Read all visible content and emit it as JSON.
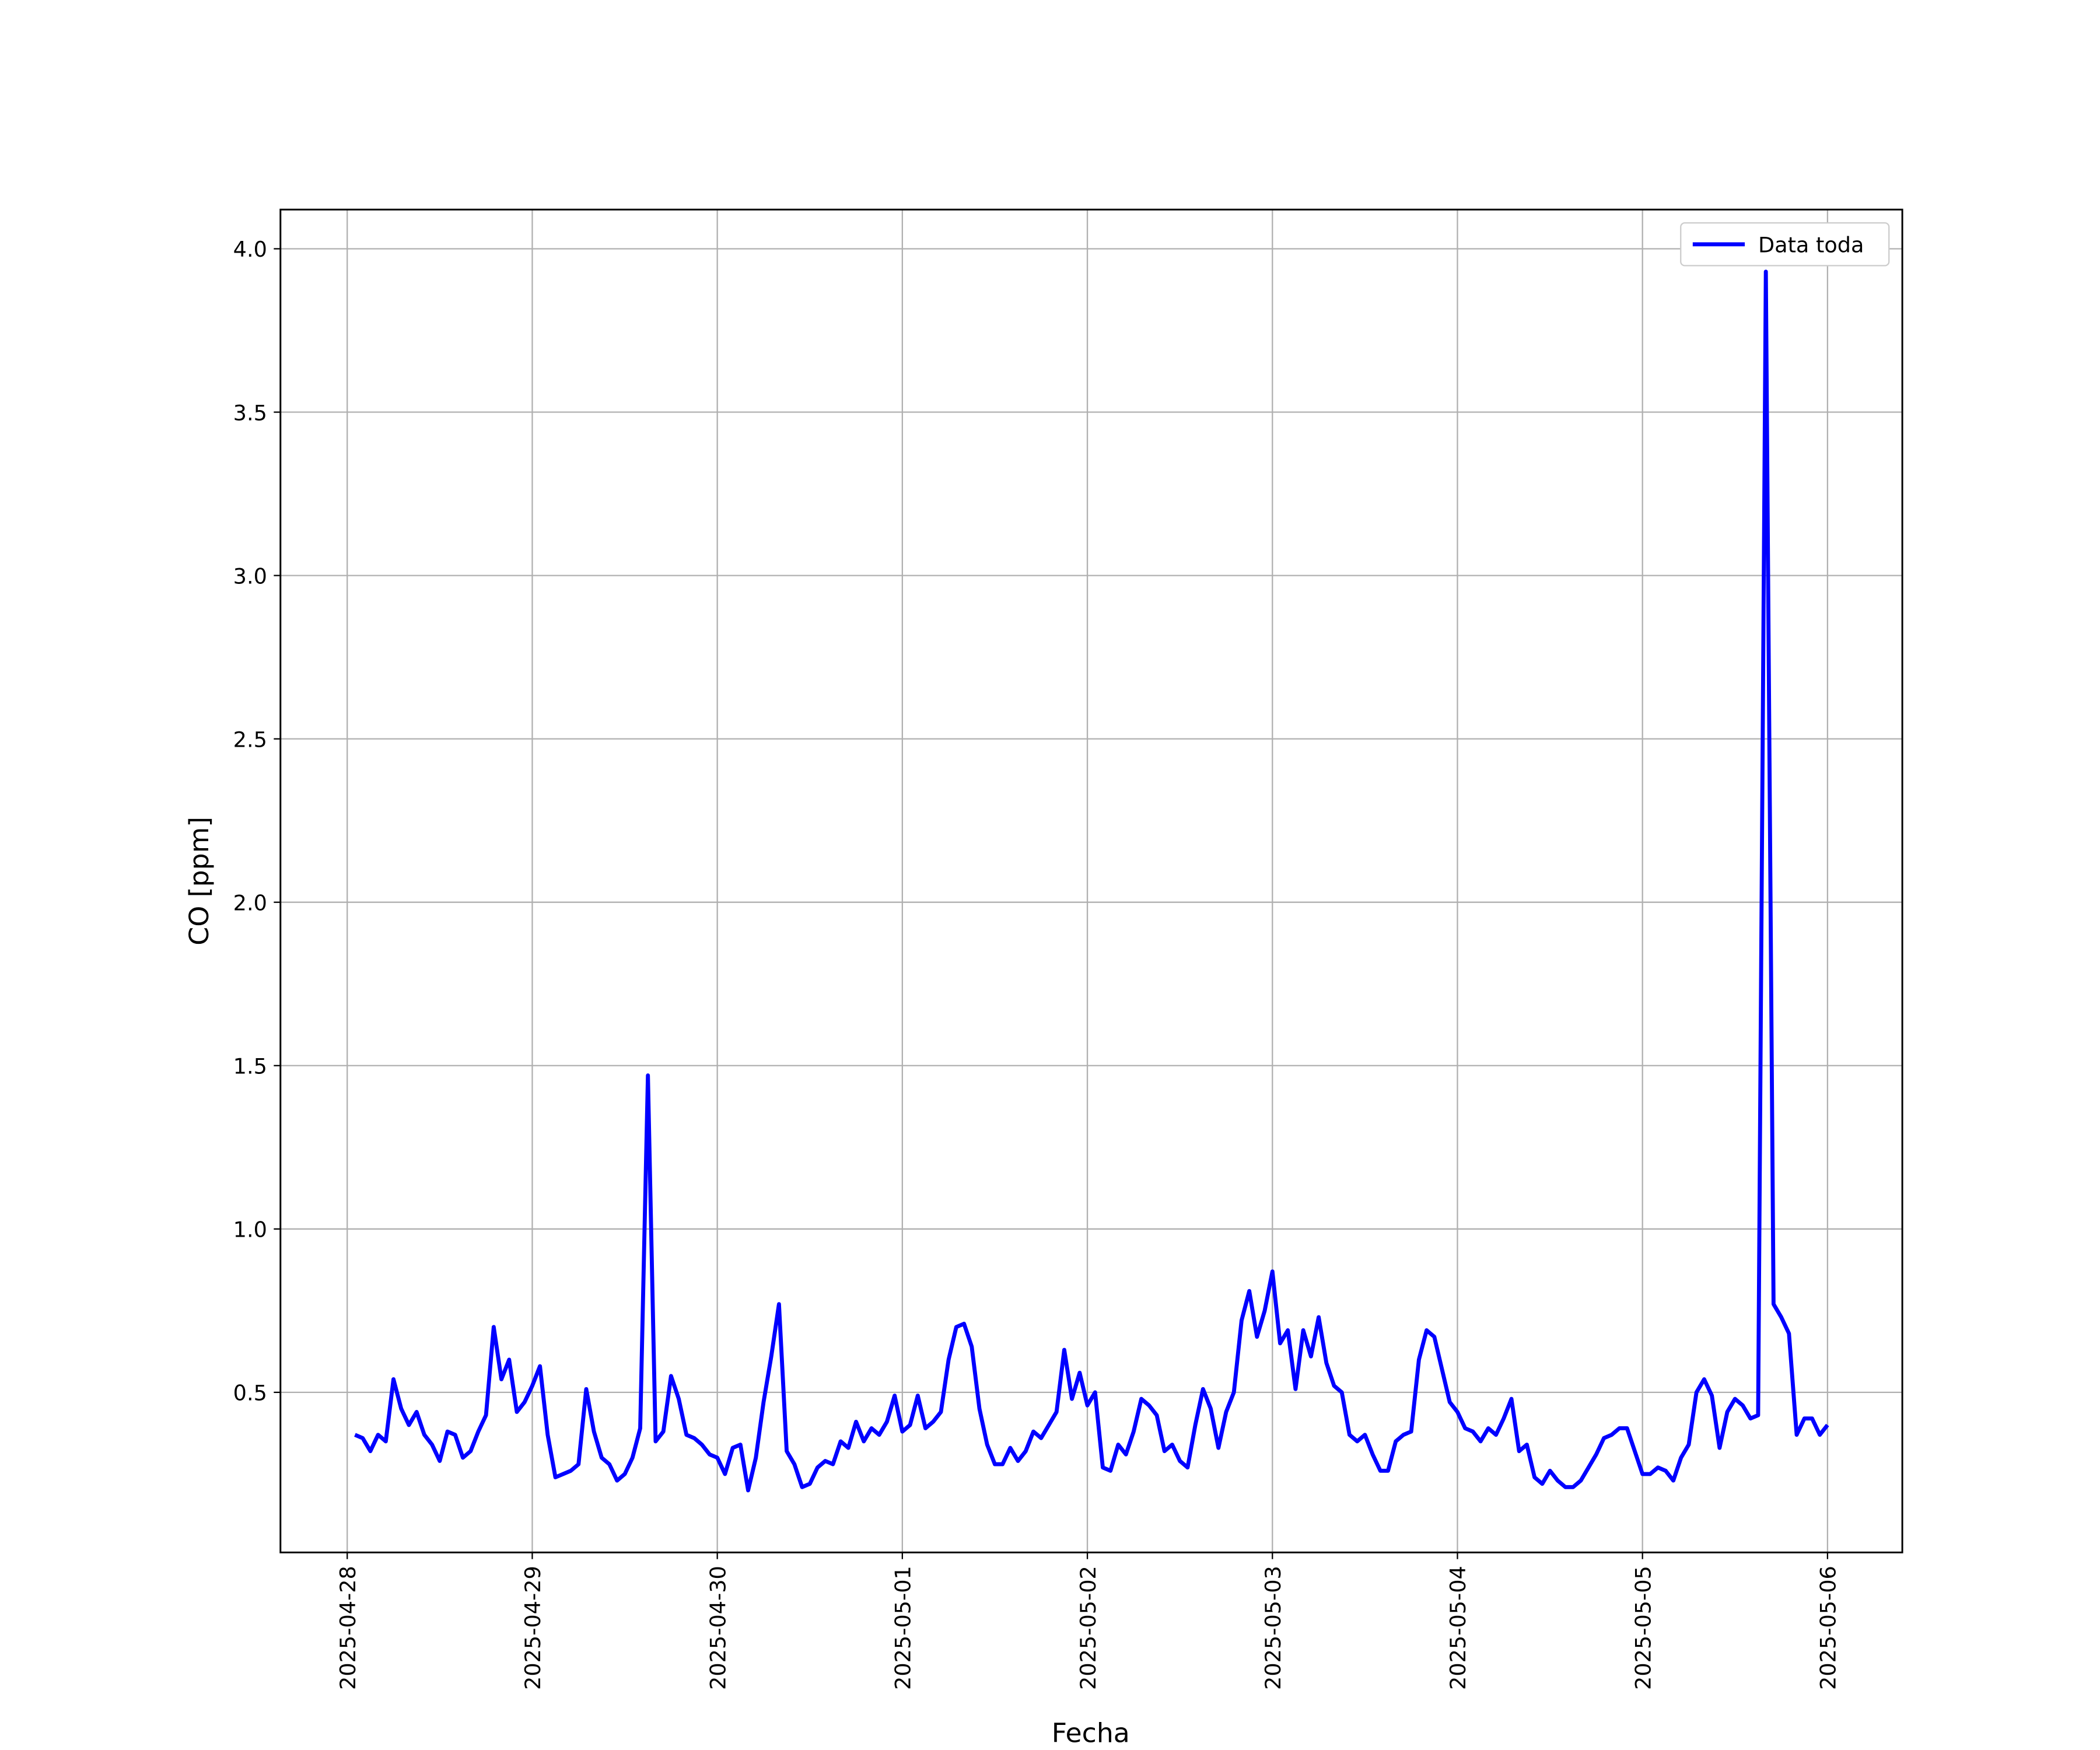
{
  "chart_data": {
    "type": "line",
    "xlabel": "Fecha",
    "ylabel": "CO [ppm]",
    "xlim": [
      -8.66,
      201.7
    ],
    "ylim": [
      0.01,
      4.12
    ],
    "xticks": [
      {
        "value": 0,
        "label": "2025-04-28"
      },
      {
        "value": 24,
        "label": "2025-04-29"
      },
      {
        "value": 48,
        "label": "2025-04-30"
      },
      {
        "value": 72,
        "label": "2025-05-01"
      },
      {
        "value": 96,
        "label": "2025-05-02"
      },
      {
        "value": 120,
        "label": "2025-05-03"
      },
      {
        "value": 144,
        "label": "2025-05-04"
      },
      {
        "value": 168,
        "label": "2025-05-05"
      },
      {
        "value": 192,
        "label": "2025-05-06"
      }
    ],
    "yticks": [
      0.5,
      {
        "value": 1,
        "label": "1.0"
      },
      1.5,
      {
        "value": 2,
        "label": "2.0"
      },
      2.5,
      {
        "value": 3,
        "label": "3.0"
      },
      3.5,
      {
        "value": 4,
        "label": "4.0"
      }
    ],
    "grid": true,
    "legend": "upper right",
    "x": [
      1,
      2,
      3,
      4,
      5,
      6,
      7,
      8,
      9,
      10,
      11,
      12,
      13,
      14,
      15,
      16,
      17,
      18,
      19,
      20,
      21,
      22,
      23,
      24,
      25,
      26,
      27,
      28,
      29,
      30,
      31,
      32,
      33,
      34,
      35,
      36,
      37,
      38,
      39,
      40,
      41,
      42,
      43,
      44,
      45,
      46,
      47,
      48,
      49,
      50,
      51,
      52,
      53,
      54,
      55,
      56,
      57,
      58,
      59,
      60,
      61,
      62,
      63,
      64,
      65,
      66,
      67,
      68,
      69,
      70,
      71,
      72,
      73,
      74,
      75,
      76,
      77,
      78,
      79,
      80,
      81,
      82,
      83,
      84,
      85,
      86,
      87,
      88,
      89,
      90,
      91,
      92,
      93,
      94,
      95,
      96,
      97,
      98,
      99,
      100,
      101,
      102,
      103,
      104,
      105,
      106,
      107,
      108,
      109,
      110,
      111,
      112,
      113,
      114,
      115,
      116,
      117,
      118,
      119,
      120,
      121,
      122,
      123,
      124,
      125,
      126,
      127,
      128,
      129,
      130,
      131,
      132,
      133,
      134,
      135,
      136,
      137,
      138,
      139,
      140,
      141,
      142,
      143,
      144,
      145,
      146,
      147,
      148,
      149,
      150,
      151,
      152,
      153,
      154,
      155,
      156,
      157,
      158,
      159,
      160,
      161,
      162,
      163,
      164,
      165,
      166,
      167,
      168,
      169,
      170,
      171,
      172,
      173,
      174,
      175,
      176,
      177,
      178,
      179,
      180,
      181,
      182,
      183,
      184,
      185,
      186,
      187,
      188,
      189,
      190,
      191,
      192
    ],
    "series": [
      {
        "name": "Data toda",
        "color": "#0000ff",
        "values": [
          0.37,
          0.36,
          0.32,
          0.37,
          0.35,
          0.54,
          0.45,
          0.4,
          0.44,
          0.37,
          0.34,
          0.29,
          0.38,
          0.37,
          0.3,
          0.32,
          0.38,
          0.43,
          0.7,
          0.54,
          0.6,
          0.44,
          0.47,
          0.52,
          0.58,
          0.37,
          0.24,
          0.25,
          0.26,
          0.28,
          0.51,
          0.38,
          0.3,
          0.28,
          0.23,
          0.25,
          0.3,
          0.39,
          1.47,
          0.35,
          0.38,
          0.55,
          0.48,
          0.37,
          0.36,
          0.34,
          0.31,
          0.3,
          0.25,
          0.33,
          0.34,
          0.2,
          0.3,
          0.47,
          0.61,
          0.77,
          0.32,
          0.28,
          0.21,
          0.22,
          0.27,
          0.29,
          0.28,
          0.35,
          0.33,
          0.41,
          0.35,
          0.39,
          0.37,
          0.41,
          0.49,
          0.38,
          0.4,
          0.49,
          0.39,
          0.41,
          0.44,
          0.6,
          0.7,
          0.71,
          0.64,
          0.45,
          0.34,
          0.28,
          0.28,
          0.33,
          0.29,
          0.32,
          0.38,
          0.36,
          0.4,
          0.44,
          0.63,
          0.48,
          0.56,
          0.46,
          0.5,
          0.27,
          0.26,
          0.34,
          0.31,
          0.38,
          0.48,
          0.46,
          0.43,
          0.32,
          0.34,
          0.29,
          0.27,
          0.4,
          0.51,
          0.45,
          0.33,
          0.44,
          0.5,
          0.72,
          0.81,
          0.67,
          0.75,
          0.87,
          0.65,
          0.69,
          0.51,
          0.69,
          0.61,
          0.73,
          0.59,
          0.52,
          0.5,
          0.37,
          0.35,
          0.37,
          0.31,
          0.26,
          0.26,
          0.35,
          0.37,
          0.38,
          0.6,
          0.69,
          0.67,
          0.57,
          0.47,
          0.44,
          0.39,
          0.38,
          0.35,
          0.39,
          0.37,
          0.42,
          0.48,
          0.32,
          0.34,
          0.24,
          0.22,
          0.26,
          0.23,
          0.21,
          0.21,
          0.23,
          0.27,
          0.31,
          0.36,
          0.37,
          0.39,
          0.39,
          0.32,
          0.25,
          0.25,
          0.27,
          0.26,
          0.23,
          0.3,
          0.34,
          0.5,
          0.54,
          0.49,
          0.33,
          0.44,
          0.48,
          0.46,
          0.42,
          0.43,
          3.93,
          0.77,
          0.73,
          0.68,
          0.37,
          0.42,
          0.42,
          0.37,
          0.4
        ]
      }
    ]
  }
}
